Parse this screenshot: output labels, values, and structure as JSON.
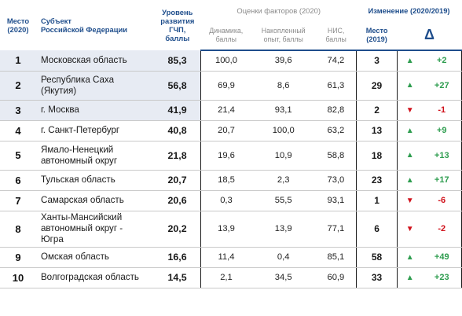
{
  "header": {
    "rank_label": "Место\n(2020)",
    "region_label": "Субъект\nРоссийской Федерации",
    "score_label": "Уровень\nразвития\nГЧП,\nбаллы",
    "factors_label": "Оценки факторов (2020)",
    "change_label": "Изменение (2020/2019)",
    "dyn_label": "Динамика,\nбаллы",
    "exp_label": "Накопленный\nопыт, баллы",
    "nis_label": "НИС,\nбаллы",
    "prev_label": "Место\n(2019)",
    "delta_label": "Δ"
  },
  "rows": [
    {
      "rank": "1",
      "name": "Московская область",
      "score": "85,3",
      "dyn": "100,0",
      "exp": "39,6",
      "nis": "74,2",
      "prev": "3",
      "dir": "up",
      "delta": "+2"
    },
    {
      "rank": "2",
      "name": "Республика Саха\n(Якутия)",
      "score": "56,8",
      "dyn": "69,9",
      "exp": "8,6",
      "nis": "61,3",
      "prev": "29",
      "dir": "up",
      "delta": "+27"
    },
    {
      "rank": "3",
      "name": "г. Москва",
      "score": "41,9",
      "dyn": "21,4",
      "exp": "93,1",
      "nis": "82,8",
      "prev": "2",
      "dir": "down",
      "delta": "-1"
    },
    {
      "rank": "4",
      "name": "г. Санкт-Петербург",
      "score": "40,8",
      "dyn": "20,7",
      "exp": "100,0",
      "nis": "63,2",
      "prev": "13",
      "dir": "up",
      "delta": "+9"
    },
    {
      "rank": "5",
      "name": "Ямало-Ненецкий\nавтономный округ",
      "score": "21,8",
      "dyn": "19,6",
      "exp": "10,9",
      "nis": "58,8",
      "prev": "18",
      "dir": "up",
      "delta": "+13"
    },
    {
      "rank": "6",
      "name": "Тульская область",
      "score": "20,7",
      "dyn": "18,5",
      "exp": "2,3",
      "nis": "73,0",
      "prev": "23",
      "dir": "up",
      "delta": "+17"
    },
    {
      "rank": "7",
      "name": "Самарская область",
      "score": "20,6",
      "dyn": "0,3",
      "exp": "55,5",
      "nis": "93,1",
      "prev": "1",
      "dir": "down",
      "delta": "-6"
    },
    {
      "rank": "8",
      "name": "Ханты-Мансийский\nавтономный округ -\nЮгра",
      "score": "20,2",
      "dyn": "13,9",
      "exp": "13,9",
      "nis": "77,1",
      "prev": "6",
      "dir": "down",
      "delta": "-2"
    },
    {
      "rank": "9",
      "name": "Омская область",
      "score": "16,6",
      "dyn": "11,4",
      "exp": "0,4",
      "nis": "85,1",
      "prev": "58",
      "dir": "up",
      "delta": "+49"
    },
    {
      "rank": "10",
      "name": "Волгоградская область",
      "score": "14,5",
      "dyn": "2,1",
      "exp": "34,5",
      "nis": "60,9",
      "prev": "33",
      "dir": "up",
      "delta": "+23"
    }
  ],
  "icons": {
    "up": "triangle-up-icon",
    "down": "triangle-down-icon"
  },
  "colors": {
    "accent": "#1f4e8c",
    "up": "#2e9d4f",
    "down": "#d0101a",
    "highlight": "#e7ebf3"
  }
}
